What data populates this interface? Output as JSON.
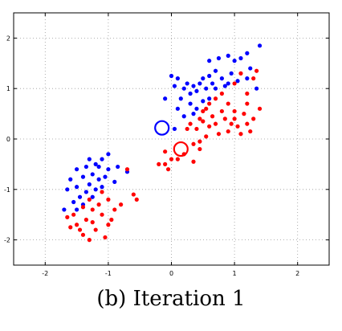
{
  "caption": "(b) Iteration 1",
  "colors": {
    "blue": "#0000ff",
    "red": "#ff0000",
    "grid": "#999999",
    "axis": "#000000"
  },
  "chart_data": {
    "type": "scatter",
    "title": "",
    "xlabel": "",
    "ylabel": "",
    "xlim": [
      -2.5,
      2.5
    ],
    "ylim": [
      -2.5,
      2.5
    ],
    "x_ticks": [
      -2,
      -1,
      0,
      1,
      2
    ],
    "y_ticks": [
      -2,
      -1,
      0,
      1,
      2
    ],
    "x_tick_labels": [
      "-2",
      "-1",
      "0",
      "1",
      "2"
    ],
    "y_tick_labels": [
      "-2",
      "-1",
      "0",
      "1",
      "2"
    ],
    "grid": "dotted",
    "series": [
      {
        "color": "blue",
        "marker": "dot",
        "points": [
          [
            1.4,
            1.85
          ],
          [
            1.2,
            1.7
          ],
          [
            0.9,
            1.65
          ],
          [
            1.1,
            1.6
          ],
          [
            1.0,
            1.55
          ],
          [
            0.75,
            1.6
          ],
          [
            1.25,
            1.4
          ],
          [
            0.6,
            1.55
          ],
          [
            0.95,
            1.3
          ],
          [
            1.2,
            1.2
          ],
          [
            1.05,
            1.15
          ],
          [
            0.7,
            1.35
          ],
          [
            0.65,
            1.1
          ],
          [
            1.35,
            1.0
          ],
          [
            0.6,
            1.25
          ],
          [
            0.8,
            1.2
          ],
          [
            0.9,
            1.1
          ],
          [
            0.5,
            1.2
          ],
          [
            0.45,
            1.1
          ],
          [
            0.55,
            1.0
          ],
          [
            0.35,
            1.05
          ],
          [
            0.25,
            1.1
          ],
          [
            0.4,
            0.95
          ],
          [
            0.3,
            0.9
          ],
          [
            0.2,
            1.0
          ],
          [
            0.1,
            1.2
          ],
          [
            0.0,
            1.25
          ],
          [
            0.05,
            1.05
          ],
          [
            0.15,
            0.8
          ],
          [
            0.3,
            0.7
          ],
          [
            0.4,
            0.6
          ],
          [
            0.5,
            0.75
          ],
          [
            0.6,
            0.8
          ],
          [
            0.7,
            1.0
          ],
          [
            0.35,
            0.5
          ],
          [
            0.1,
            0.6
          ],
          [
            -0.1,
            0.8
          ],
          [
            0.05,
            0.2
          ],
          [
            0.2,
            0.45
          ],
          [
            0.85,
            1.05
          ],
          [
            -1.0,
            -0.3
          ],
          [
            -1.1,
            -0.4
          ],
          [
            -1.2,
            -0.5
          ],
          [
            -1.3,
            -0.4
          ],
          [
            -1.5,
            -0.6
          ],
          [
            -1.25,
            -0.7
          ],
          [
            -1.15,
            -0.8
          ],
          [
            -0.85,
            -0.55
          ],
          [
            -1.4,
            -0.75
          ],
          [
            -1.3,
            -0.9
          ],
          [
            -1.6,
            -0.8
          ],
          [
            -1.0,
            -0.6
          ],
          [
            -1.1,
            -0.95
          ],
          [
            -1.5,
            -0.95
          ],
          [
            -1.35,
            -1.05
          ],
          [
            -1.2,
            -1.0
          ],
          [
            -1.45,
            -1.15
          ],
          [
            -1.65,
            -1.0
          ],
          [
            -1.55,
            -1.25
          ],
          [
            -1.4,
            -1.3
          ],
          [
            -1.5,
            -1.4
          ],
          [
            -1.7,
            -1.4
          ],
          [
            -1.25,
            -1.15
          ],
          [
            -1.15,
            -0.55
          ],
          [
            -0.9,
            -0.85
          ],
          [
            -1.35,
            -0.55
          ],
          [
            -1.05,
            -0.75
          ],
          [
            -0.7,
            -0.65
          ]
        ]
      },
      {
        "color": "red",
        "marker": "dot",
        "points": [
          [
            1.35,
            1.35
          ],
          [
            1.3,
            1.2
          ],
          [
            1.1,
            1.3
          ],
          [
            1.0,
            1.1
          ],
          [
            0.8,
            0.9
          ],
          [
            0.7,
            0.8
          ],
          [
            1.2,
            0.9
          ],
          [
            1.4,
            0.6
          ],
          [
            1.3,
            0.4
          ],
          [
            1.15,
            0.5
          ],
          [
            1.0,
            0.55
          ],
          [
            0.9,
            0.7
          ],
          [
            0.8,
            0.55
          ],
          [
            0.65,
            0.45
          ],
          [
            0.55,
            0.6
          ],
          [
            0.45,
            0.4
          ],
          [
            0.3,
            0.3
          ],
          [
            0.25,
            0.2
          ],
          [
            0.4,
            0.2
          ],
          [
            0.5,
            0.35
          ],
          [
            0.6,
            0.25
          ],
          [
            0.7,
            0.3
          ],
          [
            0.85,
            0.4
          ],
          [
            0.95,
            0.3
          ],
          [
            1.05,
            0.25
          ],
          [
            1.2,
            0.3
          ],
          [
            1.25,
            0.15
          ],
          [
            1.1,
            0.1
          ],
          [
            0.9,
            0.15
          ],
          [
            0.75,
            0.1
          ],
          [
            0.55,
            0.05
          ],
          [
            0.45,
            -0.05
          ],
          [
            0.35,
            -0.1
          ],
          [
            0.45,
            -0.2
          ],
          [
            0.2,
            -0.3
          ],
          [
            0.1,
            -0.4
          ],
          [
            0.0,
            -0.4
          ],
          [
            -0.1,
            -0.5
          ],
          [
            -0.2,
            -0.5
          ],
          [
            -0.05,
            -0.6
          ],
          [
            -0.1,
            -0.25
          ],
          [
            0.35,
            -0.45
          ],
          [
            1.0,
            0.4
          ],
          [
            0.6,
            0.7
          ],
          [
            1.2,
            0.7
          ],
          [
            0.5,
            0.55
          ],
          [
            -0.7,
            -0.6
          ],
          [
            -0.6,
            -1.1
          ],
          [
            -0.55,
            -1.2
          ],
          [
            -0.8,
            -1.3
          ],
          [
            -1.0,
            -1.2
          ],
          [
            -1.1,
            -1.05
          ],
          [
            -1.3,
            -1.2
          ],
          [
            -1.4,
            -1.35
          ],
          [
            -1.25,
            -1.4
          ],
          [
            -1.1,
            -1.5
          ],
          [
            -1.0,
            -1.7
          ],
          [
            -1.2,
            -1.8
          ],
          [
            -1.5,
            -1.7
          ],
          [
            -1.6,
            -1.75
          ],
          [
            -1.4,
            -1.9
          ],
          [
            -1.3,
            -2.0
          ],
          [
            -1.55,
            -1.5
          ],
          [
            -1.35,
            -1.6
          ],
          [
            -0.9,
            -1.4
          ],
          [
            -1.15,
            -1.3
          ],
          [
            -1.45,
            -1.8
          ],
          [
            -1.05,
            -1.95
          ],
          [
            -0.95,
            -1.6
          ],
          [
            -1.65,
            -1.55
          ],
          [
            -1.25,
            -1.65
          ]
        ]
      }
    ],
    "centroids": [
      {
        "color": "blue",
        "x": -0.15,
        "y": 0.22
      },
      {
        "color": "red",
        "x": 0.15,
        "y": -0.2
      }
    ]
  }
}
